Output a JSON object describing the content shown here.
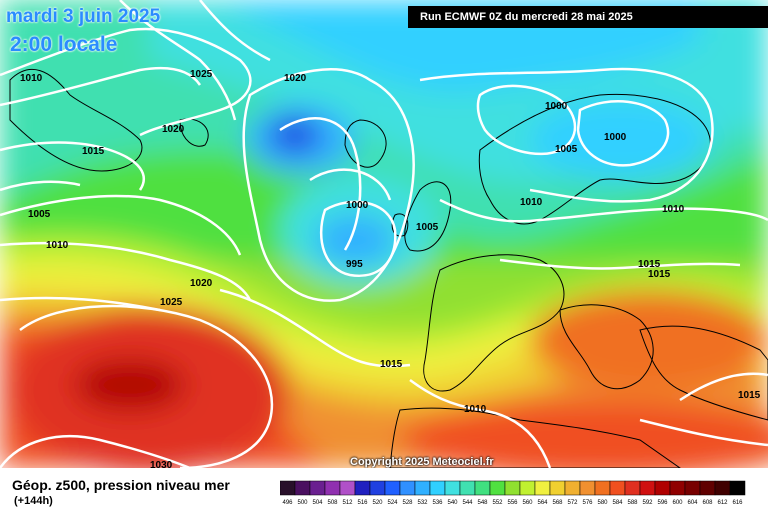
{
  "header": {
    "date": "mardi 3 juin 2025",
    "time": "2:00 locale",
    "run": "Run ECMWF 0Z du mercredi 28 mai 2025"
  },
  "copyright": "Copyright 2025 Meteociel.fr",
  "footer": {
    "title": "Géop. z500, pression niveau mer",
    "subtitle": "(+144h)"
  },
  "isobar_labels": [
    "1010",
    "1025",
    "1020",
    "1015",
    "1020",
    "1005",
    "1010",
    "1020",
    "1025",
    "1000",
    "1005",
    "995",
    "1000",
    "1005",
    "1000",
    "1010",
    "1010",
    "1015",
    "1015",
    "1015",
    "1010",
    "1015",
    "1030"
  ],
  "scale": {
    "values": [
      "496",
      "500",
      "504",
      "508",
      "512",
      "516",
      "520",
      "524",
      "528",
      "532",
      "536",
      "540",
      "544",
      "548",
      "552",
      "556",
      "560",
      "564",
      "568",
      "572",
      "576",
      "580",
      "584",
      "588",
      "592",
      "596",
      "600",
      "604",
      "608",
      "612",
      "616"
    ],
    "colors": [
      "#28102a",
      "#4a1060",
      "#6a2090",
      "#9030b0",
      "#b050c8",
      "#2020c0",
      "#2040e0",
      "#2060ff",
      "#3090ff",
      "#30b0ff",
      "#30d0ff",
      "#40e0e0",
      "#40e0b0",
      "#40e080",
      "#50e040",
      "#90e030",
      "#c0f030",
      "#f0f040",
      "#f0d030",
      "#f0b030",
      "#f09030",
      "#f07020",
      "#f05020",
      "#e03020",
      "#d01010",
      "#b00000",
      "#900000",
      "#780000",
      "#600000",
      "#400000",
      "#000000"
    ]
  }
}
